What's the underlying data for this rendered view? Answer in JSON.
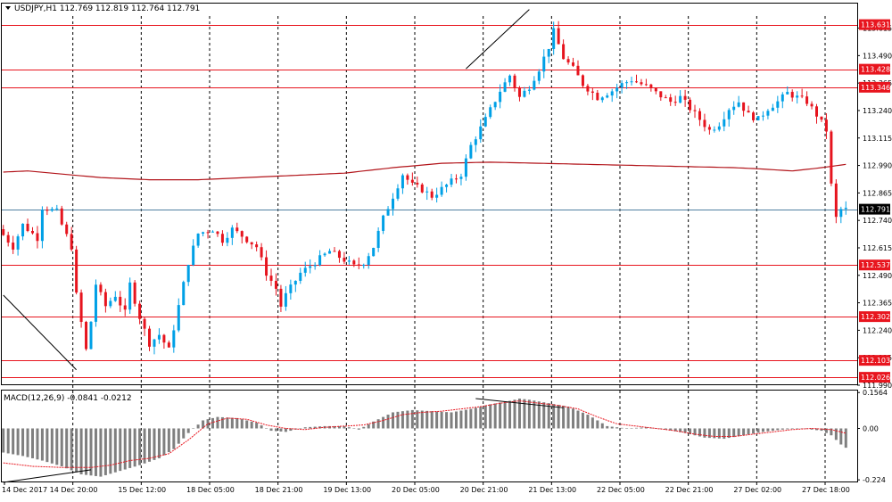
{
  "header": {
    "symbol_line": "USDJPY,H1  112.769 112.819 112.764 112.791",
    "macd_line": "MACD(12,26,9) -0.0841 -0.0212"
  },
  "chart_data": [
    {
      "type": "candlestick",
      "symbol": "USDJPY",
      "timeframe": "H1",
      "ohlc_last": {
        "open": 112.769,
        "high": 112.819,
        "low": 112.764,
        "close": 112.791
      },
      "ylim": [
        111.99,
        113.67
      ],
      "y_ticks": [
        "113.615",
        "113.490",
        "113.365",
        "113.240",
        "113.115",
        "112.990",
        "112.865",
        "112.740",
        "112.615",
        "112.490",
        "112.365",
        "112.240",
        "112.115",
        "111.990"
      ],
      "x_tick_labels": [
        "14 Dec 2017",
        "14 Dec 20:00",
        "15 Dec 12:00",
        "18 Dec 05:00",
        "18 Dec 21:00",
        "19 Dec 13:00",
        "20 Dec 05:00",
        "20 Dec 21:00",
        "21 Dec 13:00",
        "22 Dec 05:00",
        "22 Dec 21:00",
        "27 Dec 02:00",
        "27 Dec 18:00"
      ],
      "horizontal_levels": [
        113.631,
        113.428,
        113.346,
        112.537,
        112.302,
        112.103,
        112.026
      ],
      "current_price": 112.791,
      "price_path": [
        [
          0,
          112.7
        ],
        [
          3,
          112.62
        ],
        [
          5,
          112.72
        ],
        [
          8,
          112.66
        ],
        [
          9,
          112.8
        ],
        [
          12,
          112.78
        ],
        [
          13,
          112.72
        ],
        [
          15,
          112.62
        ],
        [
          16,
          112.4
        ],
        [
          18,
          112.15
        ],
        [
          19,
          112.28
        ],
        [
          20,
          112.45
        ],
        [
          22,
          112.35
        ],
        [
          24,
          112.4
        ],
        [
          26,
          112.32
        ],
        [
          27,
          112.45
        ],
        [
          29,
          112.3
        ],
        [
          31,
          112.18
        ],
        [
          33,
          112.22
        ],
        [
          35,
          112.15
        ],
        [
          37,
          112.35
        ],
        [
          39,
          112.55
        ],
        [
          41,
          112.68
        ],
        [
          44,
          112.7
        ],
        [
          46,
          112.65
        ],
        [
          48,
          112.7
        ],
        [
          50,
          112.67
        ],
        [
          53,
          112.62
        ],
        [
          55,
          112.5
        ],
        [
          57,
          112.43
        ],
        [
          58,
          112.35
        ],
        [
          59,
          112.4
        ],
        [
          62,
          112.5
        ],
        [
          65,
          112.55
        ],
        [
          68,
          112.6
        ],
        [
          71,
          112.56
        ],
        [
          73,
          112.53
        ],
        [
          75,
          112.55
        ],
        [
          77,
          112.62
        ],
        [
          79,
          112.75
        ],
        [
          81,
          112.85
        ],
        [
          83,
          112.95
        ],
        [
          85,
          112.9
        ],
        [
          87,
          112.88
        ],
        [
          89,
          112.85
        ],
        [
          92,
          112.9
        ],
        [
          95,
          112.95
        ],
        [
          97,
          113.08
        ],
        [
          100,
          113.2
        ],
        [
          103,
          113.33
        ],
        [
          105,
          113.4
        ],
        [
          107,
          113.3
        ],
        [
          109,
          113.35
        ],
        [
          111,
          113.43
        ],
        [
          113,
          113.53
        ],
        [
          114,
          113.6
        ],
        [
          116,
          113.48
        ],
        [
          118,
          113.43
        ],
        [
          120,
          113.36
        ],
        [
          123,
          113.3
        ],
        [
          126,
          113.33
        ],
        [
          128,
          113.36
        ],
        [
          130,
          113.38
        ],
        [
          133,
          113.35
        ],
        [
          135,
          113.32
        ],
        [
          138,
          113.28
        ],
        [
          140,
          113.3
        ],
        [
          142,
          113.25
        ],
        [
          144,
          113.2
        ],
        [
          146,
          113.15
        ],
        [
          148,
          113.18
        ],
        [
          150,
          113.25
        ],
        [
          152,
          113.28
        ],
        [
          154,
          113.22
        ],
        [
          156,
          113.2
        ],
        [
          158,
          113.25
        ],
        [
          160,
          113.28
        ],
        [
          162,
          113.32
        ],
        [
          164,
          113.3
        ],
        [
          166,
          113.28
        ],
        [
          168,
          113.22
        ],
        [
          170,
          113.15
        ],
        [
          171,
          112.9
        ],
        [
          172,
          112.75
        ],
        [
          173,
          112.79
        ]
      ],
      "moving_average": [
        [
          0,
          112.96
        ],
        [
          5,
          112.965
        ],
        [
          10,
          112.955
        ],
        [
          20,
          112.935
        ],
        [
          30,
          112.925
        ],
        [
          40,
          112.925
        ],
        [
          50,
          112.935
        ],
        [
          60,
          112.945
        ],
        [
          70,
          112.955
        ],
        [
          80,
          112.98
        ],
        [
          90,
          113.0
        ],
        [
          100,
          113.005
        ],
        [
          110,
          113.0
        ],
        [
          120,
          112.995
        ],
        [
          130,
          112.99
        ],
        [
          140,
          112.985
        ],
        [
          150,
          112.98
        ],
        [
          155,
          112.975
        ],
        [
          162,
          112.965
        ],
        [
          168,
          112.98
        ],
        [
          173,
          112.995
        ]
      ],
      "trend_lines": [
        {
          "from": [
            0,
            112.4
          ],
          "to": [
            15,
            112.06
          ]
        },
        {
          "from": [
            95,
            113.43
          ],
          "to": [
            108,
            113.7
          ]
        }
      ]
    },
    {
      "type": "bar",
      "name": "MACD(12,26,9)",
      "values_shown": [
        -0.0841,
        -0.0212
      ],
      "ylim": [
        -0.235,
        0.165
      ],
      "y_ticks": [
        "0.1564",
        "0.00",
        "-0.224"
      ],
      "histogram_path": [
        [
          0,
          -0.105
        ],
        [
          4,
          -0.12
        ],
        [
          8,
          -0.14
        ],
        [
          12,
          -0.165
        ],
        [
          16,
          -0.2
        ],
        [
          20,
          -0.21
        ],
        [
          24,
          -0.185
        ],
        [
          28,
          -0.16
        ],
        [
          32,
          -0.13
        ],
        [
          35,
          -0.09
        ],
        [
          38,
          -0.02
        ],
        [
          41,
          0.035
        ],
        [
          44,
          0.05
        ],
        [
          48,
          0.045
        ],
        [
          52,
          0.025
        ],
        [
          55,
          -0.01
        ],
        [
          58,
          -0.015
        ],
        [
          62,
          0.005
        ],
        [
          66,
          0.01
        ],
        [
          70,
          0.01
        ],
        [
          73,
          -0.005
        ],
        [
          76,
          0.03
        ],
        [
          80,
          0.07
        ],
        [
          84,
          0.08
        ],
        [
          88,
          0.075
        ],
        [
          92,
          0.07
        ],
        [
          96,
          0.085
        ],
        [
          100,
          0.105
        ],
        [
          104,
          0.12
        ],
        [
          106,
          0.13
        ],
        [
          108,
          0.125
        ],
        [
          112,
          0.11
        ],
        [
          116,
          0.095
        ],
        [
          120,
          0.06
        ],
        [
          124,
          0.01
        ],
        [
          128,
          0.0
        ],
        [
          132,
          0.005
        ],
        [
          136,
          -0.005
        ],
        [
          140,
          -0.02
        ],
        [
          144,
          -0.04
        ],
        [
          148,
          -0.045
        ],
        [
          152,
          -0.03
        ],
        [
          156,
          -0.015
        ],
        [
          160,
          -0.005
        ],
        [
          164,
          0.0
        ],
        [
          168,
          -0.01
        ],
        [
          170,
          -0.03
        ],
        [
          172,
          -0.07
        ],
        [
          173,
          -0.084
        ]
      ],
      "signal_path": [
        [
          0,
          -0.15
        ],
        [
          6,
          -0.165
        ],
        [
          12,
          -0.17
        ],
        [
          18,
          -0.17
        ],
        [
          22,
          -0.16
        ],
        [
          26,
          -0.14
        ],
        [
          30,
          -0.13
        ],
        [
          34,
          -0.11
        ],
        [
          38,
          -0.05
        ],
        [
          42,
          0.02
        ],
        [
          46,
          0.045
        ],
        [
          50,
          0.04
        ],
        [
          54,
          0.015
        ],
        [
          58,
          0.0
        ],
        [
          62,
          -0.005
        ],
        [
          66,
          0.005
        ],
        [
          70,
          0.01
        ],
        [
          74,
          0.015
        ],
        [
          78,
          0.035
        ],
        [
          82,
          0.06
        ],
        [
          86,
          0.07
        ],
        [
          90,
          0.075
        ],
        [
          94,
          0.085
        ],
        [
          98,
          0.095
        ],
        [
          102,
          0.11
        ],
        [
          106,
          0.12
        ],
        [
          110,
          0.11
        ],
        [
          114,
          0.1
        ],
        [
          118,
          0.085
        ],
        [
          122,
          0.05
        ],
        [
          126,
          0.02
        ],
        [
          130,
          0.01
        ],
        [
          134,
          0.0
        ],
        [
          138,
          -0.01
        ],
        [
          142,
          -0.025
        ],
        [
          146,
          -0.035
        ],
        [
          150,
          -0.035
        ],
        [
          154,
          -0.025
        ],
        [
          158,
          -0.015
        ],
        [
          162,
          -0.005
        ],
        [
          166,
          0.0
        ],
        [
          170,
          -0.005
        ],
        [
          173,
          -0.021
        ]
      ],
      "trend_lines": [
        {
          "from": [
            0,
            -0.235
          ],
          "to": [
            18,
            -0.18
          ]
        },
        {
          "from": [
            97,
            0.13
          ],
          "to": [
            115,
            0.09
          ]
        }
      ]
    }
  ],
  "colors": {
    "bull": "#00a0e6",
    "bear": "#e6141e",
    "level_line": "#e8151e",
    "ma_line": "#b2141a",
    "hist": "#7f7f7f",
    "signal": "#e8151e",
    "grid": "#000000",
    "current_line": "#5080a0",
    "tag_bg": "#e8151e",
    "current_tag_bg": "#000000"
  }
}
